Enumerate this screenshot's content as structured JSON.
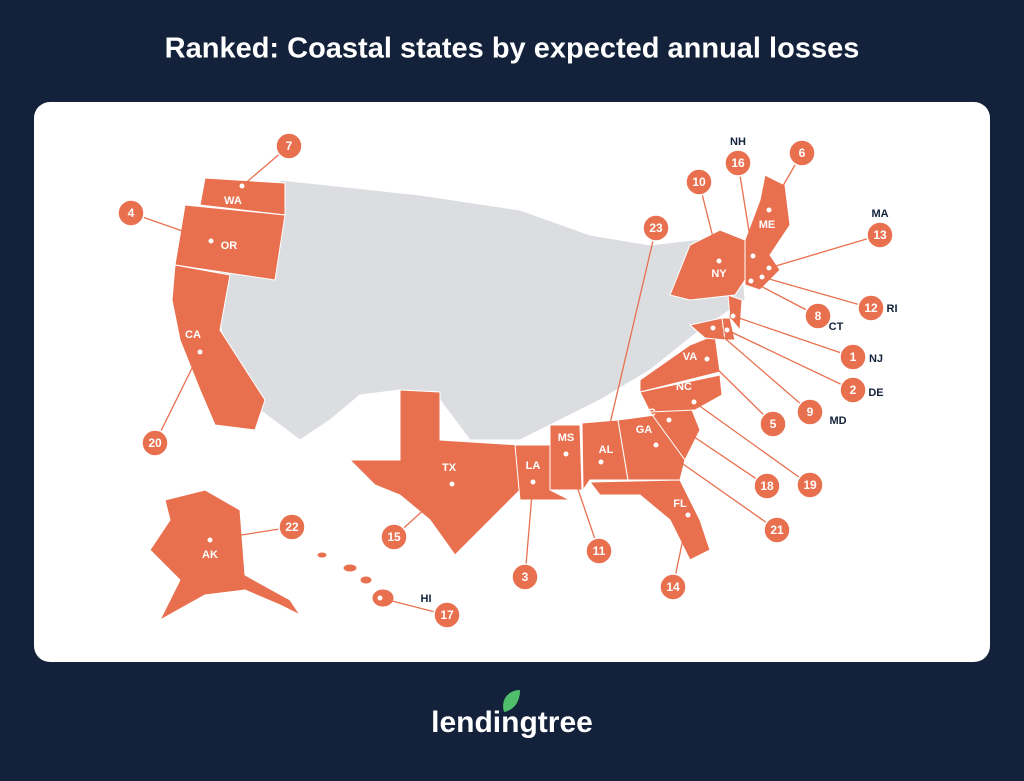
{
  "header": {
    "title": "Ranked: Coastal states by expected annual losses"
  },
  "states": [
    {
      "abbr": "WA",
      "rank": 7
    },
    {
      "abbr": "OR",
      "rank": 4
    },
    {
      "abbr": "CA",
      "rank": 20
    },
    {
      "abbr": "AK",
      "rank": 22
    },
    {
      "abbr": "HI",
      "rank": 17
    },
    {
      "abbr": "TX",
      "rank": 15
    },
    {
      "abbr": "LA",
      "rank": 3
    },
    {
      "abbr": "MS",
      "rank": 11
    },
    {
      "abbr": "AL",
      "rank": 23
    },
    {
      "abbr": "FL",
      "rank": 14
    },
    {
      "abbr": "GA",
      "rank": 21
    },
    {
      "abbr": "SC",
      "rank": 18
    },
    {
      "abbr": "NC",
      "rank": 19
    },
    {
      "abbr": "VA",
      "rank": 5
    },
    {
      "abbr": "MD",
      "rank": 9
    },
    {
      "abbr": "DE",
      "rank": 2
    },
    {
      "abbr": "NJ",
      "rank": 1
    },
    {
      "abbr": "NY",
      "rank": 10
    },
    {
      "abbr": "CT",
      "rank": 8
    },
    {
      "abbr": "RI",
      "rank": 12
    },
    {
      "abbr": "MA",
      "rank": 13
    },
    {
      "abbr": "NH",
      "rank": 16
    },
    {
      "abbr": "ME",
      "rank": 6
    }
  ],
  "footer": {
    "logo": "lendingtree"
  }
}
